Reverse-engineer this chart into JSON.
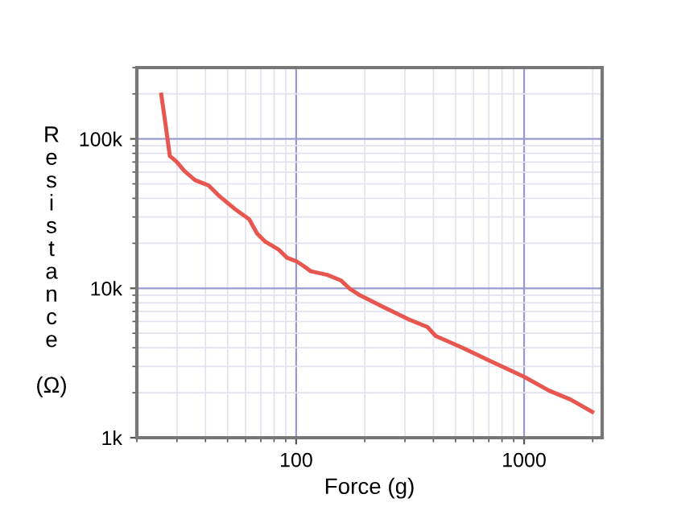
{
  "chart_data": {
    "type": "line",
    "xlabel": "Force (g)",
    "ylabel": "R\ne\ns\ni\ns\nt\na\nn\nc\ne\n\n(Ω)",
    "log": "xy",
    "grid": true,
    "xlim": [
      20,
      2200
    ],
    "xticks": [
      100,
      1000
    ],
    "ylim": [
      1000,
      300000
    ],
    "yticks": [
      {
        "value": 1000,
        "label": "1k"
      },
      {
        "value": 10000,
        "label": "10k"
      },
      {
        "value": 100000,
        "label": "100k"
      }
    ],
    "series": [
      {
        "color": "#e8574f",
        "x": [
          25.6,
          26.7,
          27.9,
          29.8,
          32.3,
          36.0,
          41.3,
          46.1,
          54.3,
          62.2,
          67.5,
          73.3,
          84,
          91.2,
          100,
          107,
          116,
          137,
          157,
          171,
          190,
          237,
          311,
          377,
          409,
          537,
          705,
          1000,
          1285,
          1600,
          1990
        ],
        "values": [
          198000,
          126000,
          76800,
          70700,
          61000,
          53000,
          48800,
          41300,
          33600,
          29000,
          23200,
          20500,
          18100,
          16000,
          15200,
          14200,
          13000,
          12300,
          11300,
          10000,
          9000,
          7600,
          6200,
          5500,
          4800,
          4000,
          3280,
          2560,
          2070,
          1800,
          1490
        ]
      }
    ]
  }
}
